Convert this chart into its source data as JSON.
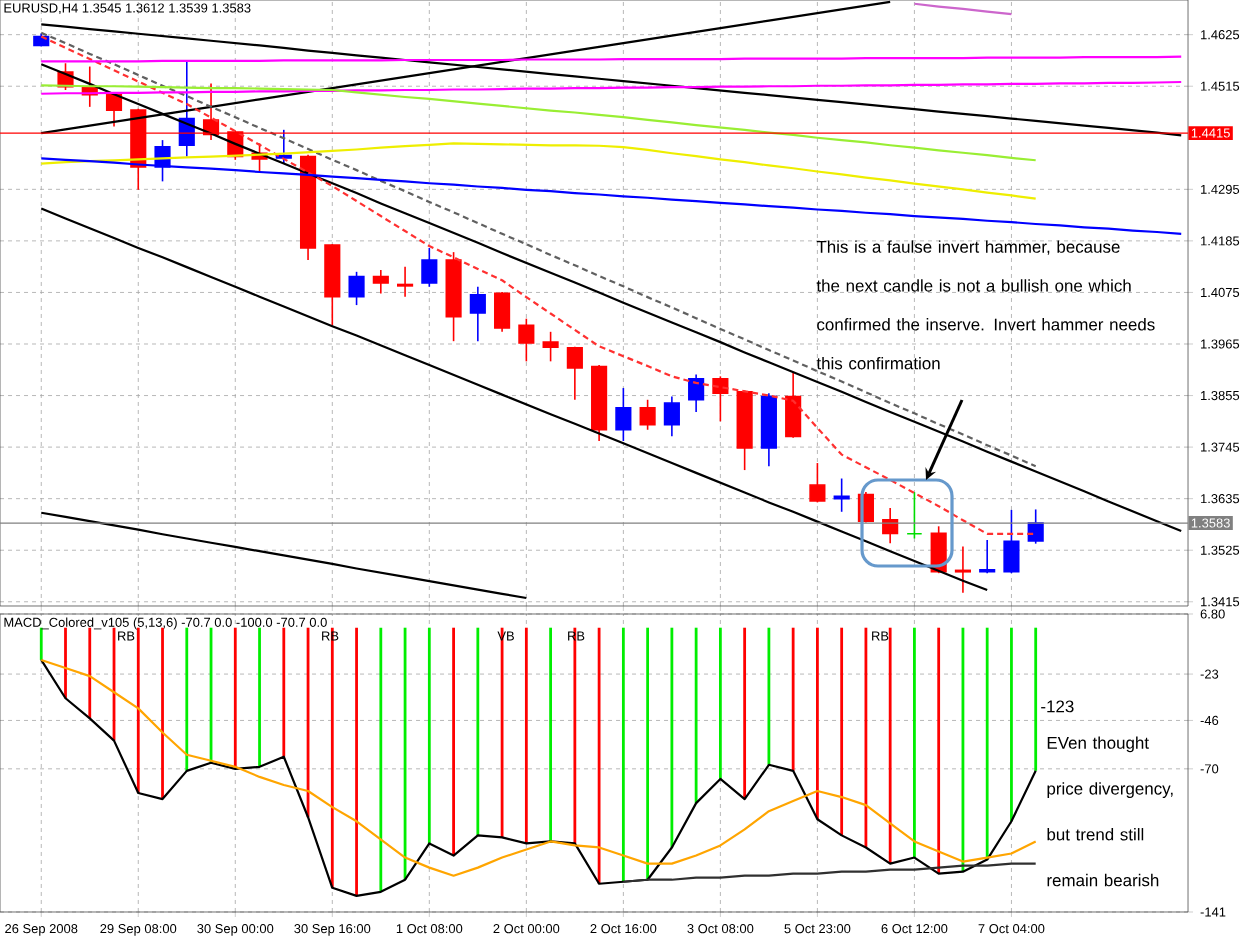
{
  "chart_data": [
    {
      "type": "candlestick",
      "title": "EURUSD,H4  1.3545 1.3612 1.3539 1.3583",
      "categories": [
        null,
        null,
        null,
        null,
        null,
        null,
        null,
        null,
        null,
        null,
        null,
        null,
        null,
        null,
        null,
        null,
        null,
        null,
        null,
        null,
        null,
        null,
        null,
        null,
        null,
        null,
        null,
        null,
        null,
        null,
        null,
        null,
        null,
        null,
        null,
        null,
        null,
        null,
        null,
        null,
        null,
        null,
        null,
        null,
        null,
        null,
        null,
        null
      ],
      "ohlc": [
        [
          1.4602,
          1.4628,
          1.46,
          1.4621
        ],
        [
          1.4545,
          1.4564,
          1.4507,
          1.4514
        ],
        [
          1.4514,
          1.4557,
          1.4471,
          1.4497
        ],
        [
          1.4497,
          1.45,
          1.4429,
          1.4464
        ],
        [
          1.4464,
          1.4467,
          1.4294,
          1.4343
        ],
        [
          1.4343,
          1.44,
          1.4312,
          1.4386
        ],
        [
          1.4389,
          1.4571,
          1.4365,
          1.4446
        ],
        [
          1.4443,
          1.4521,
          1.44,
          1.4412
        ],
        [
          1.4417,
          1.442,
          1.4358,
          1.4365
        ],
        [
          1.4372,
          1.4393,
          1.4332,
          1.436
        ],
        [
          1.4362,
          1.4422,
          1.435,
          1.4367
        ],
        [
          1.4365,
          1.4369,
          1.4144,
          1.417
        ],
        [
          1.4176,
          1.4178,
          1.4005,
          1.4066
        ],
        [
          1.4066,
          1.4119,
          1.4048,
          1.4109
        ],
        [
          1.4109,
          1.4123,
          1.4073,
          1.4095
        ],
        [
          1.4092,
          1.413,
          1.4066,
          1.4089
        ],
        [
          1.4095,
          1.417,
          1.4087,
          1.4144
        ],
        [
          1.4144,
          1.4161,
          1.3971,
          1.4023
        ],
        [
          1.4031,
          1.4087,
          1.3971,
          1.407
        ],
        [
          1.4073,
          1.4076,
          1.3991,
          1.3999
        ],
        [
          1.4005,
          1.4019,
          1.3928,
          1.3967
        ],
        [
          1.3969,
          1.3991,
          1.3928,
          1.3958
        ],
        [
          1.3957,
          1.3959,
          1.3846,
          1.3914
        ],
        [
          1.3917,
          1.392,
          1.3758,
          1.3782
        ],
        [
          1.3782,
          1.3871,
          1.3758,
          1.3829
        ],
        [
          1.3829,
          1.3846,
          1.3782,
          1.3793
        ],
        [
          1.3793,
          1.3853,
          1.3768,
          1.3839
        ],
        [
          1.3846,
          1.39,
          1.382,
          1.3891
        ],
        [
          1.3891,
          1.3896,
          1.38,
          1.386
        ],
        [
          1.3863,
          1.3866,
          1.3696,
          1.3743
        ],
        [
          1.3743,
          1.386,
          1.3704,
          1.3853
        ],
        [
          1.3853,
          1.3905,
          1.3765,
          1.3768
        ],
        [
          1.3664,
          1.3711,
          1.3627,
          1.363
        ],
        [
          1.3635,
          1.3678,
          1.3607,
          1.364
        ],
        [
          1.3644,
          1.3649,
          1.3584,
          1.3587
        ],
        [
          1.359,
          1.3615,
          1.354,
          1.3561
        ],
        [
          1.356,
          1.3649,
          1.355,
          1.356
        ],
        [
          1.3561,
          1.3576,
          1.3476,
          1.3479
        ],
        [
          1.3482,
          1.3533,
          1.3434,
          1.3479
        ],
        [
          1.3479,
          1.3547,
          1.3476,
          1.3483
        ],
        [
          1.3479,
          1.3611,
          1.3476,
          1.3544
        ],
        [
          1.3545,
          1.3612,
          1.3539,
          1.3583
        ],
        null,
        null,
        null,
        null,
        null,
        null
      ],
      "colors": [
        "#0000ff",
        "#ff0000",
        "#ff0000",
        "#ff0000",
        "#ff0000",
        "#0000ff",
        "#0000ff",
        "#ff0000",
        "#ff0000",
        "#ff0000",
        "#0000ff",
        "#ff0000",
        "#ff0000",
        "#0000ff",
        "#ff0000",
        "#ff0000",
        "#0000ff",
        "#ff0000",
        "#0000ff",
        "#ff0000",
        "#ff0000",
        "#ff0000",
        "#ff0000",
        "#ff0000",
        "#0000ff",
        "#ff0000",
        "#0000ff",
        "#0000ff",
        "#ff0000",
        "#ff0000",
        "#0000ff",
        "#ff0000",
        "#ff0000",
        "#0000ff",
        "#ff0000",
        "#ff0000",
        "#00dd00",
        "#ff0000",
        "#ff0000",
        "#0000ff",
        "#0000ff",
        "#0000ff",
        null,
        null,
        null,
        null,
        null,
        null
      ],
      "series": [
        {
          "type": "line",
          "color": "#000000",
          "values": [
            1.4647,
            1.4642,
            1.4637,
            1.4632,
            1.4627,
            1.4622,
            1.4617,
            1.4612,
            1.4607,
            1.4602,
            1.4597,
            1.4591,
            1.4586,
            1.4581,
            1.4576,
            1.4571,
            1.4566,
            1.4561,
            1.4556,
            1.4551,
            1.4546,
            1.4541,
            1.4536,
            1.4531,
            1.4526,
            1.4521,
            1.4516,
            1.4511,
            1.4506,
            1.4501,
            1.4496,
            1.4491,
            1.4486,
            1.4481,
            1.4476,
            1.4471,
            1.4466,
            1.4461,
            1.4456,
            1.4451,
            1.4446,
            1.4441,
            1.4436,
            1.4431,
            1.4426,
            1.4421,
            1.4416,
            1.441
          ]
        },
        {
          "type": "line",
          "color": "#000000",
          "values": [
            1.4415,
            1.4423,
            1.4431,
            1.4439,
            1.4447,
            1.4455,
            1.4463,
            1.4471,
            1.4479,
            1.4487,
            1.4495,
            1.4503,
            1.4511,
            1.4519,
            1.4527,
            1.4535,
            1.4543,
            1.4551,
            1.4559,
            1.4567,
            1.4575,
            1.4583,
            1.4591,
            1.4599,
            1.4607,
            1.4615,
            1.4623,
            1.4631,
            1.4639,
            1.4647,
            1.4655,
            1.4663,
            1.4671,
            1.4679,
            1.4687,
            1.4695,
            null,
            null,
            null,
            null,
            null,
            null,
            null,
            null,
            null,
            null,
            null,
            null
          ]
        },
        {
          "type": "line",
          "color": "#000000",
          "values": [
            1.4562,
            1.4541,
            1.452,
            1.4498,
            1.4477,
            1.4456,
            1.4435,
            1.4414,
            1.4392,
            1.4371,
            1.435,
            1.4329,
            1.4308,
            1.4287,
            1.4265,
            1.4244,
            1.4223,
            1.4202,
            1.4181,
            1.4159,
            1.4138,
            1.4117,
            1.4096,
            1.4075,
            1.4053,
            1.4032,
            1.4011,
            1.399,
            1.3969,
            1.3947,
            1.3926,
            1.3905,
            1.3884,
            1.3863,
            1.3841,
            1.382,
            1.3799,
            1.3778,
            1.3757,
            1.3735,
            1.3714,
            1.3693,
            1.3672,
            1.3651,
            1.3629,
            1.3608,
            1.3587,
            1.3566
          ]
        },
        {
          "type": "line",
          "color": "#000000",
          "values": [
            1.4254,
            1.4233,
            1.4212,
            1.4191,
            1.417,
            1.415,
            1.4129,
            1.4108,
            1.4087,
            1.4066,
            1.4045,
            1.4024,
            1.4003,
            1.3983,
            1.3962,
            1.3941,
            1.392,
            1.3899,
            1.3878,
            1.3857,
            1.3836,
            1.3815,
            1.3795,
            1.3774,
            1.3753,
            1.3732,
            1.3711,
            1.369,
            1.3669,
            1.3648,
            1.3627,
            1.3607,
            1.3586,
            1.3565,
            1.3544,
            1.3523,
            1.3502,
            1.3481,
            1.346,
            1.344,
            null,
            null,
            null,
            null,
            null,
            null,
            null,
            null
          ]
        },
        {
          "type": "line",
          "color": "#000000",
          "values": [
            1.3605,
            1.3596,
            1.3587,
            1.3578,
            1.3569,
            1.3559,
            1.355,
            1.3541,
            1.3532,
            1.3523,
            1.3514,
            1.3505,
            1.3496,
            1.3486,
            1.3477,
            1.3468,
            1.3459,
            1.345,
            1.3441,
            1.3432,
            1.3423,
            null,
            null,
            null,
            null,
            null,
            null,
            null,
            null,
            null,
            null,
            null,
            null,
            null,
            null,
            null,
            null,
            null,
            null,
            null,
            null,
            null,
            null,
            null,
            null,
            null,
            null,
            null
          ]
        },
        {
          "type": "line",
          "color": "#606060",
          "line_style": "dashed",
          "values": [
            1.4629,
            1.4607,
            1.4584,
            1.4562,
            1.4539,
            1.4516,
            1.4494,
            1.4471,
            1.4449,
            1.4426,
            1.4404,
            1.4381,
            1.4358,
            1.4336,
            1.4313,
            1.4291,
            1.4268,
            1.4246,
            1.4223,
            1.42,
            1.4178,
            1.4155,
            1.4133,
            1.411,
            1.4088,
            1.4065,
            1.4043,
            1.402,
            1.3997,
            1.3975,
            1.3952,
            1.393,
            1.3907,
            1.3885,
            1.3862,
            1.3839,
            1.3817,
            1.3794,
            1.3772,
            1.3749,
            1.3727,
            1.3704,
            null,
            null,
            null,
            null,
            null,
            null
          ]
        },
        {
          "type": "line",
          "color": "#ff3030",
          "line_style": "dashed",
          "values": [
            1.4621,
            1.4597,
            1.4573,
            1.4549,
            1.4525,
            1.4501,
            1.4477,
            1.4448,
            1.4419,
            1.439,
            1.436,
            1.4331,
            1.4302,
            1.427,
            1.4238,
            1.4206,
            1.4174,
            1.415,
            1.4125,
            1.4101,
            1.4065,
            1.403,
            1.3995,
            1.396,
            1.3939,
            1.3918,
            1.3896,
            1.3882,
            1.3873,
            1.3864,
            1.3855,
            1.3844,
            1.3786,
            1.3729,
            1.3702,
            1.3675,
            1.3647,
            1.3619,
            1.3589,
            1.356,
            1.356,
            1.356,
            null,
            null,
            null,
            null,
            null,
            null
          ]
        },
        {
          "type": "line",
          "color": "#ff00ff",
          "values": [
            1.4568,
            1.4568,
            1.4568,
            1.4568,
            1.4568,
            1.4569,
            1.4569,
            1.4569,
            1.4569,
            1.4569,
            1.457,
            1.457,
            1.457,
            1.457,
            1.457,
            1.4571,
            1.4571,
            1.4571,
            1.4571,
            1.4571,
            1.4572,
            1.4572,
            1.4572,
            1.4572,
            1.4573,
            1.4573,
            1.4573,
            1.4573,
            1.4573,
            1.4574,
            1.4574,
            1.4574,
            1.4574,
            1.4574,
            1.4575,
            1.4575,
            1.4575,
            1.4575,
            1.4575,
            1.4576,
            1.4576,
            1.4576,
            1.4576,
            1.4577,
            1.4577,
            1.4577,
            1.4577,
            1.4578
          ]
        },
        {
          "type": "line",
          "color": "#ff00ff",
          "values": [
            1.4499,
            1.45,
            1.45,
            1.4501,
            1.4501,
            1.4502,
            1.4502,
            1.4503,
            1.4503,
            1.4504,
            1.4504,
            1.4505,
            1.4505,
            1.4506,
            1.4506,
            1.4507,
            1.4507,
            1.4508,
            1.4508,
            1.4509,
            1.451,
            1.451,
            1.4511,
            1.4511,
            1.4512,
            1.4512,
            1.4513,
            1.4513,
            1.4514,
            1.4514,
            1.4515,
            1.4515,
            1.4516,
            1.4516,
            1.4517,
            1.4517,
            1.4518,
            1.4518,
            1.4519,
            1.4519,
            1.452,
            1.452,
            1.4521,
            1.4521,
            1.4522,
            1.4522,
            1.4523,
            1.4524
          ]
        },
        {
          "type": "line",
          "color": "#cc66cc",
          "values": [
            null,
            null,
            null,
            null,
            null,
            null,
            null,
            null,
            null,
            null,
            null,
            null,
            null,
            null,
            null,
            null,
            null,
            null,
            null,
            null,
            null,
            null,
            null,
            null,
            null,
            null,
            null,
            null,
            null,
            null,
            null,
            null,
            null,
            null,
            null,
            null,
            1.4691,
            1.4685,
            1.468,
            1.4674,
            1.4669,
            null,
            null,
            null,
            null,
            null,
            null,
            null
          ]
        },
        {
          "type": "line",
          "color": "#99ee33",
          "values": [
            1.4517,
            1.4516,
            1.4515,
            1.4515,
            1.4514,
            1.4513,
            1.4512,
            1.4511,
            1.4511,
            1.451,
            1.4509,
            1.4508,
            1.4507,
            1.4502,
            1.4497,
            1.4492,
            1.4488,
            1.4483,
            1.4478,
            1.4473,
            1.4468,
            1.4463,
            1.4459,
            1.4454,
            1.4449,
            1.4443,
            1.4438,
            1.4432,
            1.4427,
            1.4422,
            1.4416,
            1.4411,
            1.4405,
            1.44,
            1.4395,
            1.4389,
            1.4384,
            1.4378,
            1.4373,
            1.4368,
            1.4362,
            1.4357,
            null,
            null,
            null,
            null,
            null,
            null
          ]
        },
        {
          "type": "line",
          "color": "#eeee00",
          "values": [
            1.435,
            1.4353,
            1.4355,
            1.4357,
            1.4359,
            1.4361,
            1.4363,
            1.4365,
            1.4367,
            1.4369,
            1.4371,
            1.4374,
            1.4377,
            1.438,
            1.4384,
            1.4387,
            1.439,
            1.4393,
            1.4392,
            1.4391,
            1.439,
            1.4389,
            1.4389,
            1.4388,
            1.4385,
            1.4379,
            1.4372,
            1.4366,
            1.4359,
            1.4353,
            1.4346,
            1.434,
            1.4333,
            1.4327,
            1.432,
            1.4314,
            1.4307,
            1.4301,
            1.4295,
            1.4288,
            1.4282,
            1.4275,
            null,
            null,
            null,
            null,
            null,
            null
          ]
        },
        {
          "type": "line",
          "color": "#0000ff",
          "values": [
            1.4361,
            1.4358,
            1.4355,
            1.4352,
            1.4348,
            1.4345,
            1.4342,
            1.4339,
            1.4336,
            1.4332,
            1.4329,
            1.4326,
            1.4322,
            1.4319,
            1.4315,
            1.4312,
            1.4308,
            1.4305,
            1.4301,
            1.4298,
            1.4294,
            1.4291,
            1.4287,
            1.4284,
            1.428,
            1.4277,
            1.4273,
            1.427,
            1.4266,
            1.4263,
            1.4259,
            1.4256,
            1.4252,
            1.4249,
            1.4245,
            1.4242,
            1.4238,
            1.4235,
            1.4232,
            1.4228,
            1.4225,
            1.4221,
            1.4218,
            1.4214,
            1.4211,
            1.4207,
            1.4204,
            1.42
          ]
        }
      ],
      "ylim": [
        1.3406,
        1.4699
      ],
      "yticks": [
        1.4625,
        1.4515,
        1.4295,
        1.4185,
        1.4075,
        1.3965,
        1.3855,
        1.3745,
        1.3635,
        1.3525,
        1.3415
      ],
      "ref_lines": [
        {
          "axis": "y",
          "value": 1.4415,
          "label": "1.4415",
          "color": "#ff0000"
        },
        {
          "axis": "y",
          "value": 1.3583,
          "label": "1.3583",
          "color": "#808080"
        }
      ],
      "annotations": [
        "This is a faulse invert hammer, because the next candle is not a bullish one which confirmed the inserve. Invert hammer needs this confirmation"
      ],
      "grid": true
    },
    {
      "type": "bar",
      "title": "MACD_Colored_v105 (5,13,6) -70.7 0.0 -100.0 -70.7 0.0",
      "categories": [
        "26 Sep 2008",
        null,
        null,
        null,
        "29 Sep 08:00",
        null,
        null,
        null,
        "30 Sep 00:00",
        null,
        null,
        null,
        "30 Sep 16:00",
        null,
        null,
        null,
        "1 Oct 08:00",
        null,
        null,
        null,
        "2 Oct 00:00",
        null,
        null,
        null,
        "2 Oct 16:00",
        null,
        null,
        null,
        "3 Oct 08:00",
        null,
        null,
        null,
        "5 Oct 23:00",
        null,
        null,
        null,
        "6 Oct 12:00",
        null,
        null,
        null,
        "7 Oct 04:00",
        null,
        null,
        null,
        null,
        null,
        null,
        null
      ],
      "series": [
        {
          "type": "bar",
          "values": [
            -16,
            -35,
            -45,
            -56,
            -82,
            -85,
            -71,
            -67,
            -70,
            -69,
            -64,
            -94,
            -129,
            -133,
            -131,
            -125,
            -107,
            -113,
            -103,
            -104,
            -107,
            -106,
            -107,
            -127,
            -126,
            -125,
            -109,
            -87,
            -75,
            -85,
            -68,
            -71,
            -95,
            -103,
            -109,
            -117,
            -114,
            -122,
            -121,
            -115,
            -96,
            -71,
            null,
            null,
            null,
            null,
            null,
            null
          ],
          "colors": [
            "#00ee00",
            "#ff0000",
            "#ff0000",
            "#ff0000",
            "#ff0000",
            "#ff0000",
            "#00ee00",
            "#00ee00",
            "#ff0000",
            "#00ee00",
            "#ff0000",
            "#ff0000",
            "#ff0000",
            "#ff0000",
            "#00ee00",
            "#00ee00",
            "#00ee00",
            "#ff0000",
            "#00ee00",
            "#ff0000",
            "#ff0000",
            "#00ee00",
            "#ff0000",
            "#ff0000",
            "#00ee00",
            "#00ee00",
            "#00ee00",
            "#00ee00",
            "#00ee00",
            "#ff0000",
            "#00ee00",
            "#ff0000",
            "#ff0000",
            "#ff0000",
            "#ff0000",
            "#ff0000",
            "#00ee00",
            "#ff0000",
            "#00ee00",
            "#00ee00",
            "#00ee00",
            "#00ee00",
            null,
            null,
            null,
            null,
            null,
            null
          ]
        },
        {
          "type": "line",
          "color": "#000000",
          "values": [
            -16,
            -35,
            -45,
            -56,
            -82,
            -85,
            -71,
            -67,
            -70,
            -69,
            -64,
            -94,
            -129,
            -133,
            -131,
            -125,
            -107,
            -113,
            -103,
            -104,
            -107,
            -106,
            -107,
            -127,
            -126,
            -125,
            -109,
            -87,
            -75,
            -85,
            -68,
            -71,
            -95,
            -103,
            -109,
            -117,
            -114,
            -122,
            -121,
            -115,
            -96,
            -71,
            null,
            null,
            null,
            null,
            null,
            null
          ]
        },
        {
          "type": "line",
          "color": "#ffa500",
          "values": [
            -16,
            -20,
            -24,
            -32,
            -40,
            -52,
            -63,
            -66,
            -69,
            -74,
            -78,
            -81,
            -89,
            -96,
            -105,
            -114,
            -119,
            -123,
            -119,
            -114,
            -110,
            -106,
            -108,
            -109,
            -113,
            -117,
            -117,
            -113,
            -108,
            -100,
            -91,
            -86,
            -81,
            -84,
            -88,
            -97,
            -106,
            -111,
            -116,
            -114,
            -112,
            -106,
            null,
            null,
            null,
            null,
            null,
            null
          ]
        },
        {
          "type": "line",
          "color": "#303030",
          "values": [
            null,
            null,
            null,
            null,
            null,
            null,
            null,
            null,
            null,
            null,
            null,
            null,
            null,
            null,
            null,
            null,
            null,
            null,
            null,
            null,
            null,
            null,
            null,
            null,
            -126,
            -125,
            -125,
            -124,
            -124,
            -123,
            -123,
            -122,
            -122,
            -121,
            -121,
            -120,
            -120,
            -119,
            -118,
            -118,
            -117,
            -117,
            null,
            null,
            null,
            null,
            null,
            null
          ]
        }
      ],
      "ylim": [
        -141,
        6.8
      ],
      "yticks": [
        {
          "value": 6.8,
          "label": "6.80"
        },
        -23,
        -46,
        -70,
        -141
      ],
      "annotations": [
        "RB",
        "RB",
        "VB",
        "RB",
        "RB",
        "-123",
        "EVen thought price divergency, but trend still remain bearish"
      ],
      "grid": true
    }
  ]
}
